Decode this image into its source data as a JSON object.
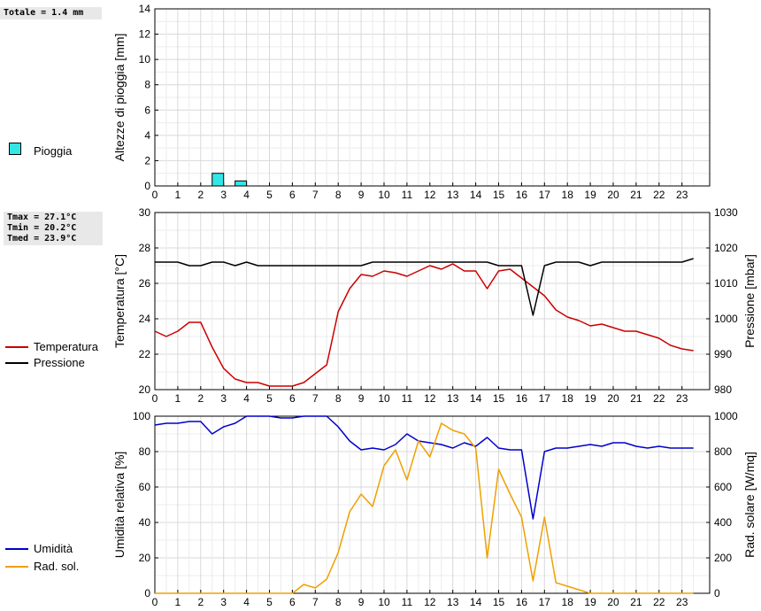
{
  "rain_panel": {
    "totals": [
      "Totale = 1.4 mm"
    ],
    "legend": [
      {
        "label": "Pioggia",
        "color": "#33e6e6"
      }
    ]
  },
  "temp_panel": {
    "stats": [
      "Tmax = 27.1°C",
      "Tmin = 20.2°C",
      "Tmed = 23.9°C"
    ],
    "legend": [
      {
        "label": "Temperatura",
        "color": "#cc0000"
      },
      {
        "label": "Pressione",
        "color": "#000000"
      }
    ]
  },
  "hum_panel": {
    "legend": [
      {
        "label": "Umidità",
        "color": "#0000cc"
      },
      {
        "label": "Rad. sol.",
        "color": "#f0a000"
      }
    ]
  },
  "chart_data": [
    {
      "type": "bar",
      "ylabel": "Altezze di pioggia [mm]",
      "ylim": [
        0,
        14
      ],
      "yticks": [
        0,
        2,
        4,
        6,
        8,
        10,
        12,
        14
      ],
      "xticks": [
        0,
        1,
        2,
        3,
        4,
        5,
        6,
        7,
        8,
        9,
        10,
        11,
        12,
        13,
        14,
        15,
        16,
        17,
        18,
        19,
        20,
        21,
        22,
        23
      ],
      "xlim": [
        0,
        24
      ],
      "grid": true,
      "series": [
        {
          "name": "Pioggia",
          "color": "#33e6e6",
          "x": [
            2.5,
            3.5
          ],
          "values": [
            1.0,
            0.4
          ]
        }
      ]
    },
    {
      "type": "line",
      "ylabel": "Temperatura [°C]",
      "ylabel_right": "Pressione [mbar]",
      "ylim": [
        20,
        30
      ],
      "ylim_right": [
        980,
        1030
      ],
      "yticks": [
        20,
        22,
        24,
        26,
        28,
        30
      ],
      "yticks_right": [
        980,
        990,
        1000,
        1010,
        1020,
        1030
      ],
      "xticks": [
        0,
        1,
        2,
        3,
        4,
        5,
        6,
        7,
        8,
        9,
        10,
        11,
        12,
        13,
        14,
        15,
        16,
        17,
        18,
        19,
        20,
        21,
        22,
        23
      ],
      "xlim": [
        0,
        24
      ],
      "grid": true,
      "series": [
        {
          "name": "Temperatura",
          "axis": "left",
          "color": "#cc0000",
          "x": [
            0,
            0.5,
            1,
            1.5,
            2,
            2.5,
            3,
            3.5,
            4,
            4.5,
            5,
            5.5,
            6,
            6.5,
            7,
            7.5,
            8,
            8.5,
            9,
            9.5,
            10,
            10.5,
            11,
            11.5,
            12,
            12.5,
            13,
            13.5,
            14,
            14.5,
            15,
            15.5,
            16,
            16.5,
            17,
            17.5,
            18,
            18.5,
            19,
            19.5,
            20,
            20.5,
            21,
            21.5,
            22,
            22.5,
            23,
            23.5
          ],
          "values": [
            23.3,
            23.0,
            23.3,
            23.8,
            23.8,
            22.4,
            21.2,
            20.6,
            20.4,
            20.4,
            20.2,
            20.2,
            20.2,
            20.4,
            20.9,
            21.4,
            24.4,
            25.7,
            26.5,
            26.4,
            26.7,
            26.6,
            26.4,
            26.7,
            27.0,
            26.8,
            27.1,
            26.7,
            26.7,
            25.7,
            26.7,
            26.8,
            26.3,
            25.8,
            25.3,
            24.5,
            24.1,
            23.9,
            23.6,
            23.7,
            23.5,
            23.3,
            23.3,
            23.1,
            22.9,
            22.5,
            22.3,
            22.2
          ]
        },
        {
          "name": "Pressione",
          "axis": "right",
          "color": "#000000",
          "x": [
            0,
            0.5,
            1,
            1.5,
            2,
            2.5,
            3,
            3.5,
            4,
            4.5,
            5,
            5.5,
            6,
            6.5,
            7,
            7.5,
            8,
            8.5,
            9,
            9.5,
            10,
            10.5,
            11,
            11.5,
            12,
            12.5,
            13,
            13.5,
            14,
            14.5,
            15,
            15.5,
            16,
            16.5,
            17,
            17.5,
            18,
            18.5,
            19,
            19.5,
            20,
            20.5,
            21,
            21.5,
            22,
            22.5,
            23,
            23.5
          ],
          "values": [
            1016,
            1016,
            1016,
            1015,
            1015,
            1016,
            1016,
            1015,
            1016,
            1015,
            1015,
            1015,
            1015,
            1015,
            1015,
            1015,
            1015,
            1015,
            1015,
            1016,
            1016,
            1016,
            1016,
            1016,
            1016,
            1016,
            1016,
            1016,
            1016,
            1016,
            1015,
            1015,
            1015,
            1001,
            1015,
            1016,
            1016,
            1016,
            1015,
            1016,
            1016,
            1016,
            1016,
            1016,
            1016,
            1016,
            1016,
            1017
          ]
        }
      ]
    },
    {
      "type": "line",
      "ylabel": "Umidità relativa [%]",
      "ylabel_right": "Rad. solare [W/mq]",
      "ylim": [
        0,
        100
      ],
      "ylim_right": [
        0,
        1000
      ],
      "yticks": [
        0,
        20,
        40,
        60,
        80,
        100
      ],
      "yticks_right": [
        0,
        200,
        400,
        600,
        800,
        1000
      ],
      "xticks": [
        0,
        1,
        2,
        3,
        4,
        5,
        6,
        7,
        8,
        9,
        10,
        11,
        12,
        13,
        14,
        15,
        16,
        17,
        18,
        19,
        20,
        21,
        22,
        23
      ],
      "xlim": [
        0,
        24
      ],
      "grid": true,
      "series": [
        {
          "name": "Umidità",
          "axis": "left",
          "color": "#0000cc",
          "x": [
            0,
            0.5,
            1,
            1.5,
            2,
            2.5,
            3,
            3.5,
            4,
            4.5,
            5,
            5.5,
            6,
            6.5,
            7,
            7.5,
            8,
            8.5,
            9,
            9.5,
            10,
            10.5,
            11,
            11.5,
            12,
            12.5,
            13,
            13.5,
            14,
            14.5,
            15,
            15.5,
            16,
            16.5,
            17,
            17.5,
            18,
            18.5,
            19,
            19.5,
            20,
            20.5,
            21,
            21.5,
            22,
            22.5,
            23,
            23.5
          ],
          "values": [
            95,
            96,
            96,
            97,
            97,
            90,
            94,
            96,
            100,
            100,
            100,
            99,
            99,
            100,
            100,
            100,
            94,
            86,
            81,
            82,
            81,
            84,
            90,
            86,
            85,
            84,
            82,
            85,
            83,
            88,
            82,
            81,
            81,
            42,
            80,
            82,
            82,
            83,
            84,
            83,
            85,
            85,
            83,
            82,
            83,
            82,
            82,
            82
          ]
        },
        {
          "name": "Rad. sol.",
          "axis": "right",
          "color": "#f0a000",
          "x": [
            0,
            0.5,
            1,
            1.5,
            2,
            2.5,
            3,
            3.5,
            4,
            4.5,
            5,
            5.5,
            6,
            6.5,
            7,
            7.5,
            8,
            8.5,
            9,
            9.5,
            10,
            10.5,
            11,
            11.5,
            12,
            12.5,
            13,
            13.5,
            14,
            14.5,
            15,
            15.5,
            16,
            16.5,
            17,
            17.5,
            18,
            18.5,
            19,
            19.5,
            20,
            20.5,
            21,
            21.5,
            22,
            22.5,
            23,
            23.5
          ],
          "values": [
            0,
            0,
            0,
            0,
            0,
            0,
            0,
            0,
            0,
            0,
            0,
            0,
            0,
            50,
            30,
            80,
            230,
            460,
            560,
            490,
            720,
            810,
            640,
            860,
            770,
            960,
            920,
            900,
            820,
            200,
            700,
            560,
            430,
            70,
            430,
            60,
            40,
            20,
            0,
            0,
            0,
            0,
            0,
            0,
            0,
            0,
            0,
            0
          ]
        }
      ]
    }
  ]
}
